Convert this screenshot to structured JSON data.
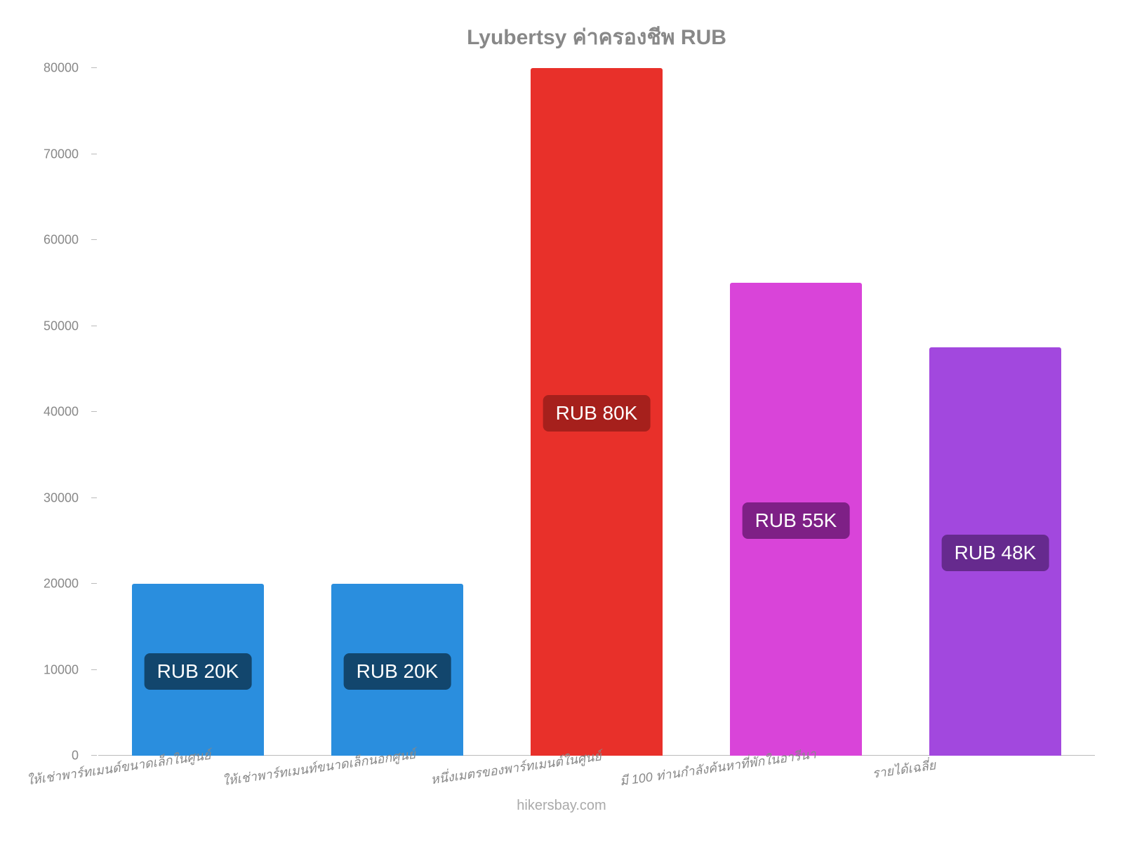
{
  "chart": {
    "type": "bar",
    "title": "Lyubertsy ค่าครองชีพ RUB",
    "title_color": "#888888",
    "title_fontsize": 30,
    "background_color": "#ffffff",
    "axis_color": "#bbbbbb",
    "tick_label_color": "#888888",
    "tick_label_fontsize": 18,
    "xlabel_fontsize": 18,
    "xlabel_font_style": "italic",
    "xlabel_rotation_deg": -8,
    "bar_width_pct": 66,
    "badge_fontsize": 28,
    "badge_text_color": "#ffffff",
    "badge_radius": 8,
    "ylim": [
      0,
      80000
    ],
    "ytick_step": 10000,
    "yticks": [
      {
        "value": 0,
        "label": "0"
      },
      {
        "value": 10000,
        "label": "10000"
      },
      {
        "value": 20000,
        "label": "20000"
      },
      {
        "value": 30000,
        "label": "30000"
      },
      {
        "value": 40000,
        "label": "40000"
      },
      {
        "value": 50000,
        "label": "50000"
      },
      {
        "value": 60000,
        "label": "60000"
      },
      {
        "value": 70000,
        "label": "70000"
      },
      {
        "value": 80000,
        "label": "80000"
      }
    ],
    "series": [
      {
        "category": "ให้เช่าพาร์ทเมนด์ขนาดเล็กในศูนย์",
        "value": 20000,
        "value_label": "RUB 20K",
        "bar_color": "#2a8ede",
        "badge_color": "#12466d"
      },
      {
        "category": "ให้เช่าพาร์ทเมนท์ขนาดเล็กนอกศูนย์",
        "value": 20000,
        "value_label": "RUB 20K",
        "bar_color": "#2a8ede",
        "badge_color": "#12466d"
      },
      {
        "category": "หนึ่งเมตรของพาร์ทเมนต์ในศูนย์",
        "value": 80000,
        "value_label": "RUB 80K",
        "bar_color": "#e8302a",
        "badge_color": "#a6201c"
      },
      {
        "category": "มี 100 ท่านกำลังค้นหาที่พักในอารีนา",
        "value": 55000,
        "value_label": "RUB 55K",
        "bar_color": "#d944d9",
        "badge_color": "#7e2086"
      },
      {
        "category": "รายได้เฉลี่ย",
        "value": 47500,
        "value_label": "RUB 48K",
        "bar_color": "#a248de",
        "badge_color": "#662a8e"
      }
    ],
    "attribution": "hikersbay.com",
    "attribution_color": "#aaaaaa",
    "attribution_fontsize": 20
  }
}
